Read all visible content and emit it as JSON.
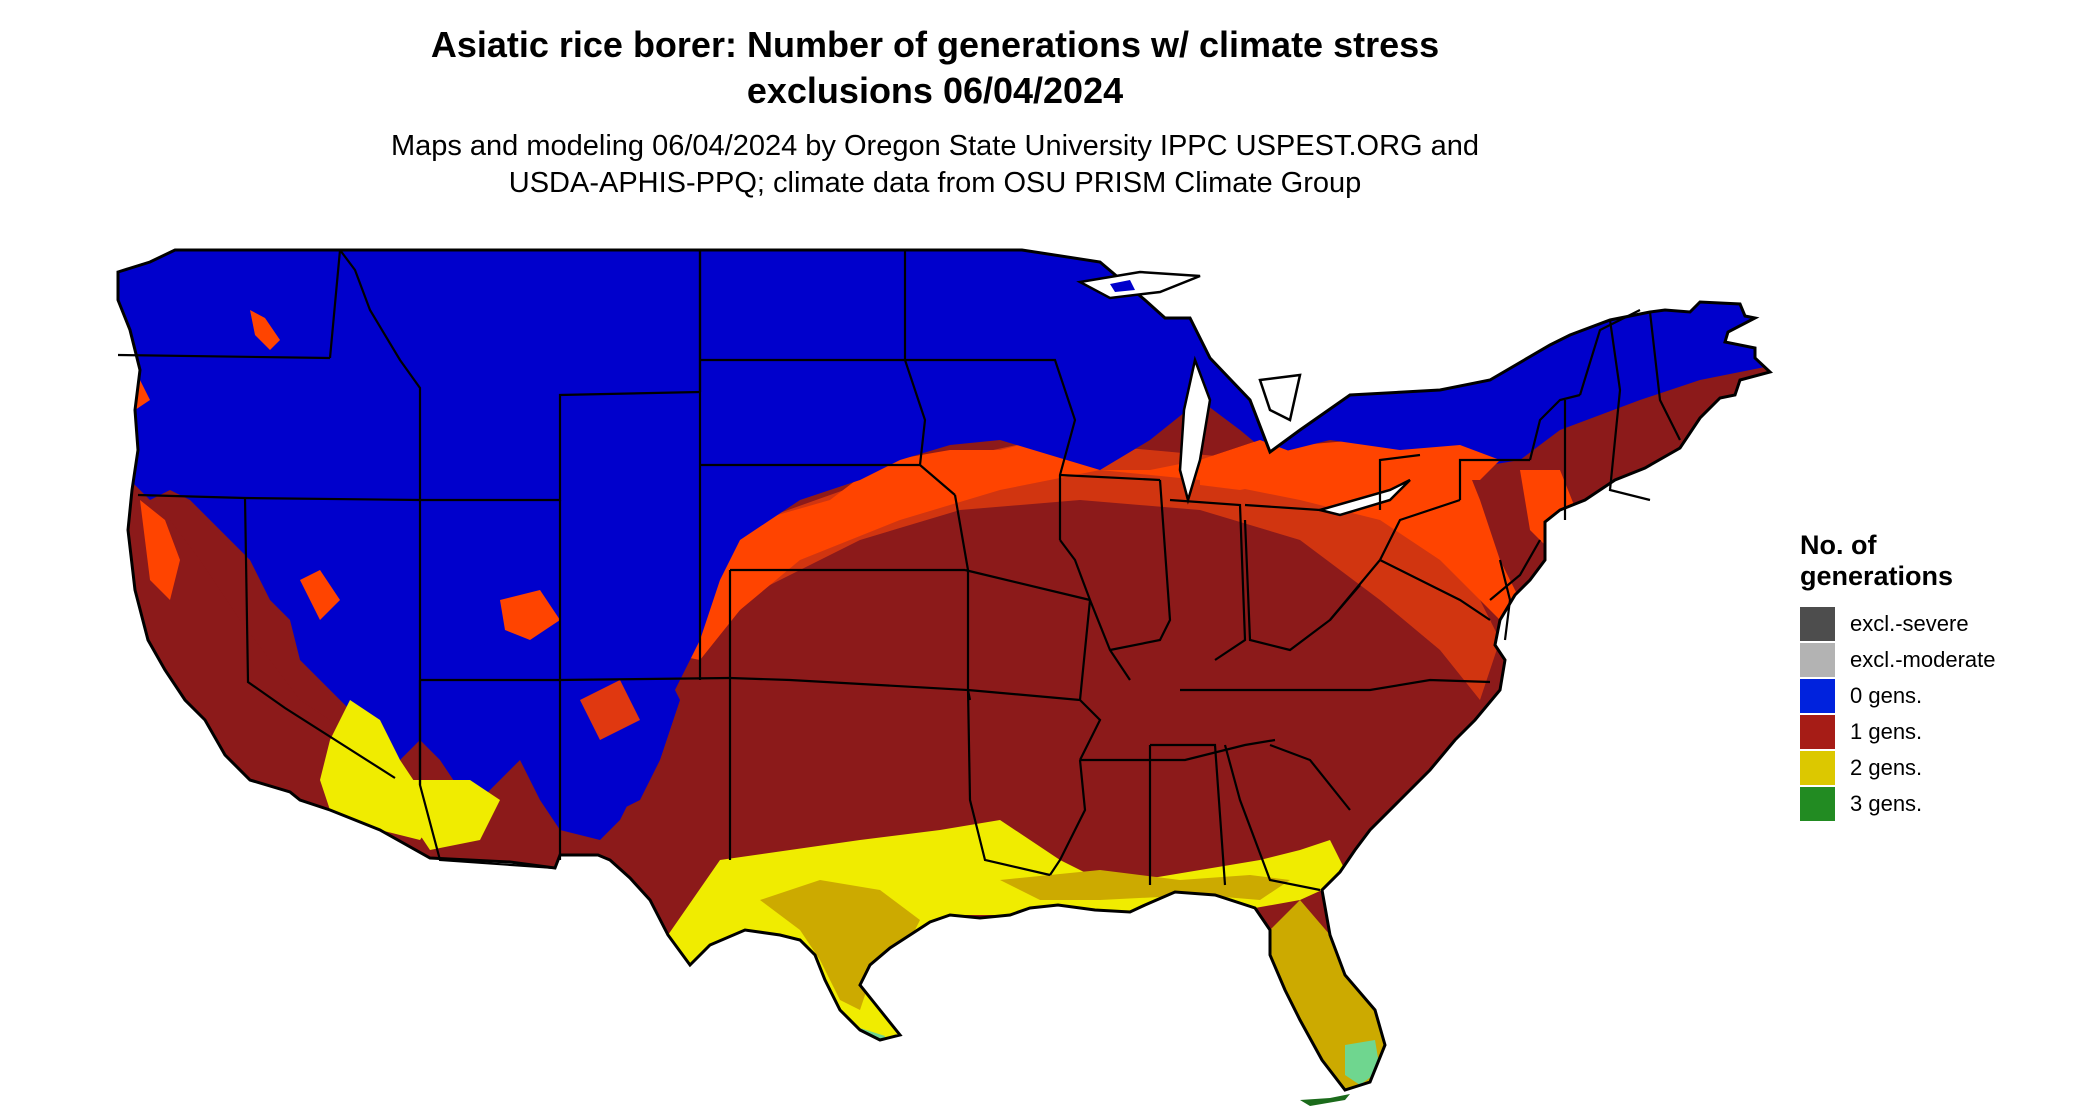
{
  "title_line1": "Asiatic rice borer: Number of generations w/ climate stress",
  "title_line2": "exclusions 06/04/2024",
  "subtitle_line1": "Maps and modeling 06/04/2024 by Oregon State University IPPC USPEST.ORG and",
  "subtitle_line2": "USDA-APHIS-PPQ; climate data from OSU PRISM Climate Group",
  "legend": {
    "title_line1": "No. of",
    "title_line2": "generations",
    "items": [
      {
        "label": "excl.-severe",
        "color": "#4d4d4d"
      },
      {
        "label": "excl.-moderate",
        "color": "#b3b3b3"
      },
      {
        "label": "0 gens.",
        "color": "#0022dd"
      },
      {
        "label": "1 gens.",
        "color": "#a61c16"
      },
      {
        "label": "2 gens.",
        "color": "#dcc800"
      },
      {
        "label": "3 gens.",
        "color": "#228b22"
      }
    ]
  },
  "map_colors": {
    "zero_gens": "#0000cc",
    "one_gen_light": "#ff4400",
    "one_gen_mid": "#e03810",
    "one_gen_dark": "#8c1a1a",
    "two_gens_light": "#f0ec00",
    "two_gens_dark": "#ccaa00",
    "three_gens": "#1b6b1b",
    "coast_green": "#6fd68f"
  }
}
